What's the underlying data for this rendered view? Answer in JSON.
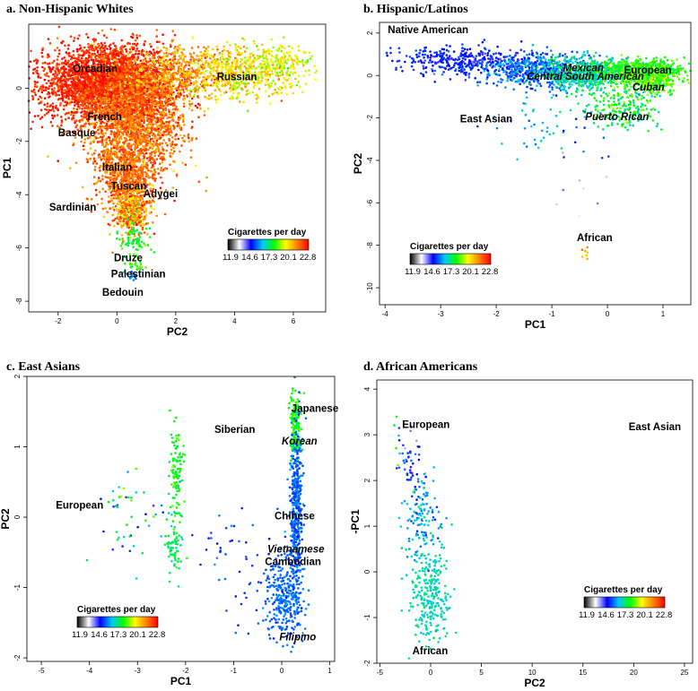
{
  "legend": {
    "title": "Cigarettes per day",
    "ticks": [
      "11.9",
      "14.6",
      "17.3",
      "20.1",
      "22.8"
    ],
    "gradient": [
      "#000000",
      "#ffffff",
      "#0000ff",
      "#00c8ff",
      "#00ff00",
      "#ffff00",
      "#ff8000",
      "#ff0000"
    ]
  },
  "chart_data": [
    {
      "type": "scatter",
      "title": "a. Non-Hispanic Whites",
      "xlabel": "PC2",
      "ylabel": "PC1",
      "xlim": [
        -3,
        7.1
      ],
      "ylim": [
        -8.4,
        2.4
      ],
      "xticks": [
        -2,
        0,
        2,
        4,
        6
      ],
      "yticks": [
        -8,
        -6,
        -4,
        -2,
        0
      ],
      "labels": [
        {
          "text": "Orcadian",
          "x": -1.5,
          "y": 0.6
        },
        {
          "text": "Russian",
          "x": 3.4,
          "y": 0.3
        },
        {
          "text": "French",
          "x": -1.0,
          "y": -1.2
        },
        {
          "text": "Basque",
          "x": -2.0,
          "y": -1.8
        },
        {
          "text": "Italian",
          "x": -0.5,
          "y": -3.1
        },
        {
          "text": "Tuscan",
          "x": -0.2,
          "y": -3.8
        },
        {
          "text": "Adygei",
          "x": 0.9,
          "y": -4.1
        },
        {
          "text": "Sardinian",
          "x": -2.3,
          "y": -4.6
        },
        {
          "text": "Druze",
          "x": -0.1,
          "y": -6.5
        },
        {
          "text": "Palestinian",
          "x": -0.2,
          "y": -7.1
        },
        {
          "text": "Bedouin",
          "x": -0.5,
          "y": -7.8
        }
      ]
    },
    {
      "type": "scatter",
      "title": "b. Hispanic/Latinos",
      "xlabel": "PC1",
      "ylabel": "PC2",
      "xlim": [
        -4.1,
        1.5
      ],
      "ylim": [
        -10.8,
        2.5
      ],
      "xticks": [
        -4,
        -3,
        -2,
        -1,
        0,
        1
      ],
      "yticks": [
        -10,
        -8,
        -6,
        -4,
        -2,
        0,
        2
      ],
      "labels": [
        {
          "text": "Native American",
          "x": -3.95,
          "y": 2.0
        },
        {
          "text": "European",
          "x": 0.3,
          "y": 0.1
        },
        {
          "text": "Mexican",
          "x": -0.8,
          "y": 0.2
        },
        {
          "text": "Central South American",
          "x": -1.45,
          "y": -0.2
        },
        {
          "text": "Cuban",
          "x": 0.45,
          "y": -0.7
        },
        {
          "text": "East Asian",
          "x": -2.65,
          "y": -2.2
        },
        {
          "text": "Puerto Rican",
          "x": -0.4,
          "y": -2.1
        },
        {
          "text": "African",
          "x": -0.55,
          "y": -7.8
        }
      ]
    },
    {
      "type": "scatter",
      "title": "c. East Asians",
      "xlabel": "PC1",
      "ylabel": "PC2",
      "xlim": [
        -5.3,
        1.1
      ],
      "ylim": [
        -2.05,
        2.0
      ],
      "xticks": [
        -5,
        -4,
        -3,
        -2,
        -1,
        0,
        1
      ],
      "yticks": [
        -2,
        -1,
        0,
        1,
        2
      ],
      "labels": [
        {
          "text": "Japanese",
          "x": 0.2,
          "y": 1.5
        },
        {
          "text": "Siberian",
          "x": -1.4,
          "y": 1.2
        },
        {
          "text": "Korean",
          "x": 0.0,
          "y": 1.03
        },
        {
          "text": "European",
          "x": -4.7,
          "y": 0.12
        },
        {
          "text": "Chinese",
          "x": -0.15,
          "y": -0.03
        },
        {
          "text": "Vietnamese",
          "x": -0.3,
          "y": -0.5
        },
        {
          "text": "Cambodian",
          "x": -0.35,
          "y": -0.68
        },
        {
          "text": "Filipino",
          "x": -0.05,
          "y": -1.75
        }
      ]
    },
    {
      "type": "scatter",
      "title": "d. African Americans",
      "xlabel": "PC2",
      "ylabel": "-PC1",
      "xlim": [
        -5.3,
        25.8
      ],
      "ylim": [
        -2.0,
        4.2
      ],
      "xticks": [
        -5,
        0,
        5,
        10,
        15,
        20,
        25
      ],
      "yticks": [
        -2,
        -1,
        0,
        1,
        2,
        3,
        4
      ],
      "labels": [
        {
          "text": "European",
          "x": -2.8,
          "y": 3.15
        },
        {
          "text": "East Asian",
          "x": 19.5,
          "y": 3.1
        },
        {
          "text": "African",
          "x": -1.8,
          "y": -1.8
        }
      ]
    }
  ]
}
